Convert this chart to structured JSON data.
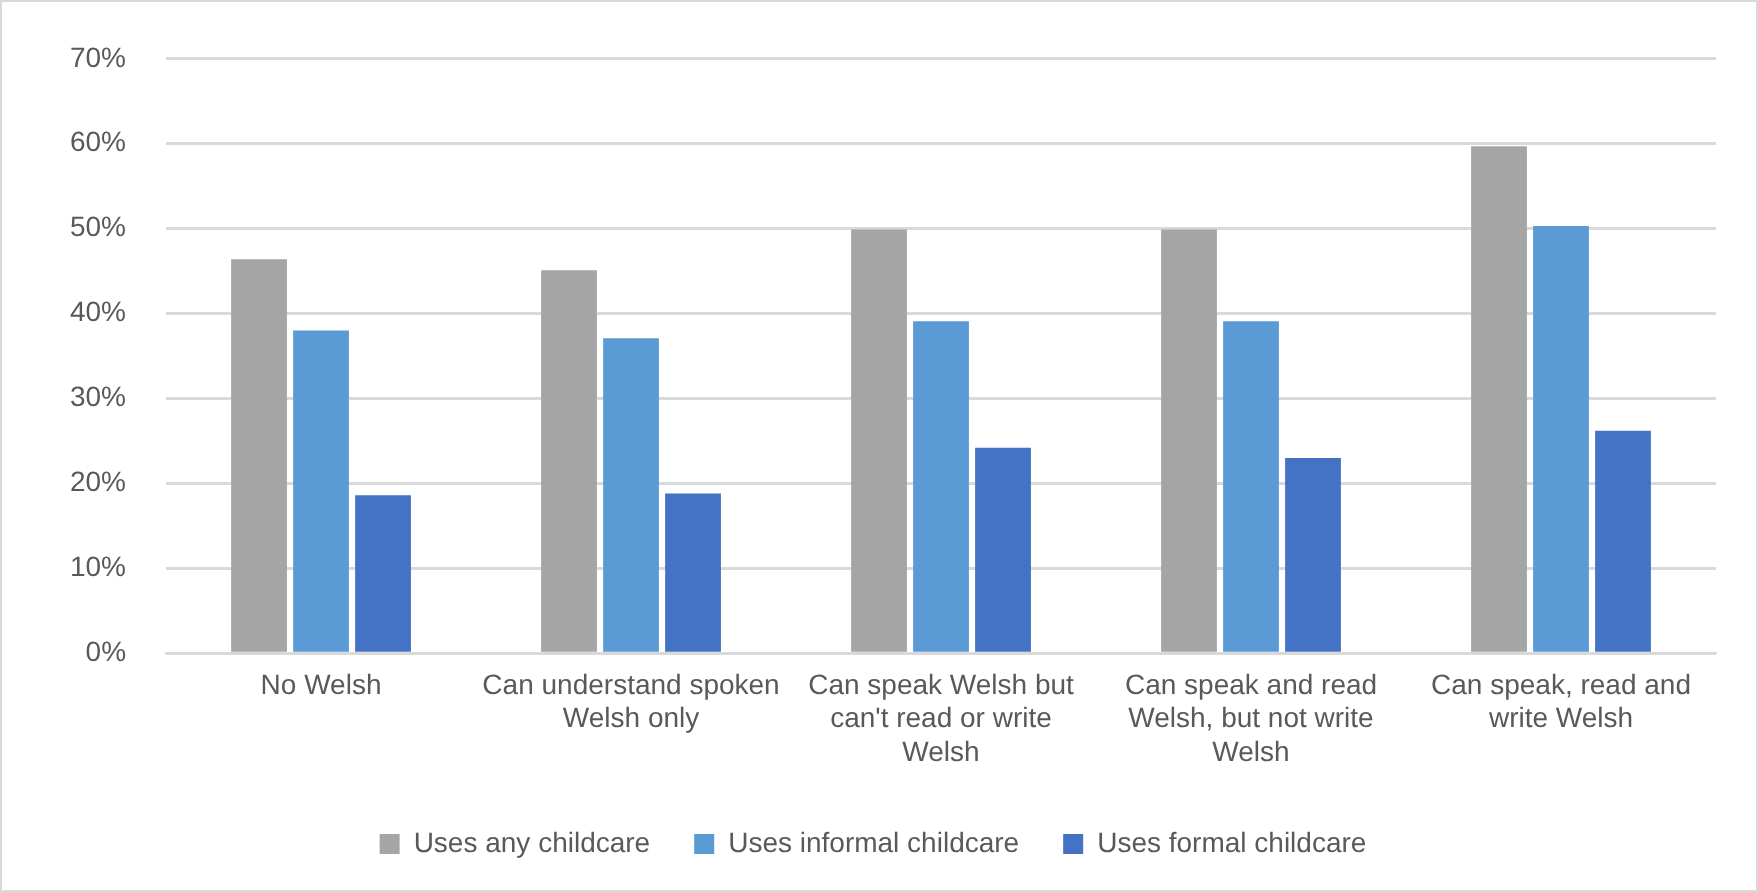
{
  "chart_data": {
    "type": "bar",
    "categories": [
      "No Welsh",
      "Can understand spoken Welsh only",
      "Can speak Welsh but can't read or write Welsh",
      "Can speak and read Welsh, but not write Welsh",
      "Can speak, read and write Welsh"
    ],
    "series": [
      {
        "name": "Uses any childcare",
        "color": "#a5a5a5",
        "values": [
          46.4,
          45.1,
          49.9,
          49.9,
          59.7
        ]
      },
      {
        "name": "Uses informal childcare",
        "color": "#5b9bd5",
        "values": [
          38.0,
          37.1,
          39.1,
          39.1,
          50.3
        ]
      },
      {
        "name": "Uses formal childcare",
        "color": "#4472c4",
        "values": [
          18.6,
          18.8,
          24.2,
          23.0,
          26.2
        ]
      }
    ],
    "ylim": [
      0,
      70
    ],
    "yticks": [
      {
        "value": 0,
        "label": "0%"
      },
      {
        "value": 10,
        "label": "10%"
      },
      {
        "value": 20,
        "label": "20%"
      },
      {
        "value": 30,
        "label": "30%"
      },
      {
        "value": 40,
        "label": "40%"
      },
      {
        "value": 50,
        "label": "50%"
      },
      {
        "value": 60,
        "label": "60%"
      },
      {
        "value": 70,
        "label": "70%"
      }
    ],
    "grid": "y",
    "legend": "bottom"
  }
}
